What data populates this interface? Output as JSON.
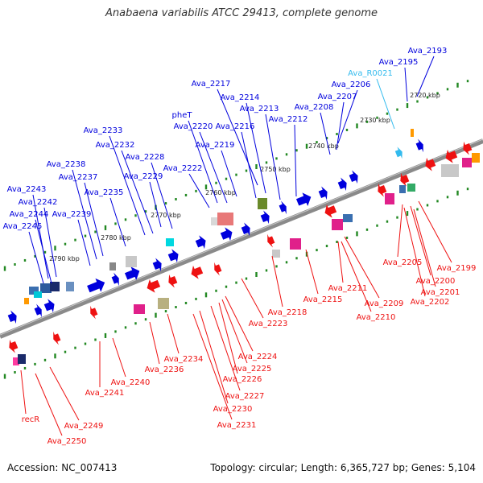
{
  "header": {
    "title": "Anabaena variabilis ATCC 29413, complete genome"
  },
  "footer": {
    "accession": "Accession: NC_007413",
    "summary": "Topology: circular; Length: 6,365,727 bp; Genes: 5,104"
  },
  "colors": {
    "forward_gene": "#0000dd",
    "reverse_gene": "#ee1111",
    "rna_label": "#33bbee",
    "backbone": "#8a8a8a",
    "tick_dot": "#228822"
  },
  "scale_ticks": [
    "2720 kbp",
    "2730 kbp",
    "2740 kbp",
    "2750 kbp",
    "2760 kbp",
    "2770 kbp",
    "2780 kbp",
    "2790 kbp"
  ],
  "labels_top": [
    {
      "text": "Ava_2193",
      "kind": "fwd"
    },
    {
      "text": "Ava_2195",
      "kind": "fwd"
    },
    {
      "text": "Ava_R0021",
      "kind": "rna"
    },
    {
      "text": "Ava_2206",
      "kind": "fwd"
    },
    {
      "text": "Ava_2207",
      "kind": "fwd"
    },
    {
      "text": "Ava_2208",
      "kind": "fwd"
    },
    {
      "text": "Ava_2217",
      "kind": "fwd"
    },
    {
      "text": "Ava_2214",
      "kind": "fwd"
    },
    {
      "text": "Ava_2213",
      "kind": "fwd"
    },
    {
      "text": "Ava_2212",
      "kind": "fwd"
    },
    {
      "text": "pheT",
      "kind": "fwd"
    },
    {
      "text": "Ava_2220",
      "kind": "fwd"
    },
    {
      "text": "Ava_2216",
      "kind": "fwd"
    },
    {
      "text": "Ava_2219",
      "kind": "fwd"
    },
    {
      "text": "Ava_2233",
      "kind": "fwd"
    },
    {
      "text": "Ava_2232",
      "kind": "fwd"
    },
    {
      "text": "Ava_2228",
      "kind": "fwd"
    },
    {
      "text": "Ava_2222",
      "kind": "fwd"
    },
    {
      "text": "Ava_2229",
      "kind": "fwd"
    },
    {
      "text": "Ava_2238",
      "kind": "fwd"
    },
    {
      "text": "Ava_2237",
      "kind": "fwd"
    },
    {
      "text": "Ava_2235",
      "kind": "fwd"
    },
    {
      "text": "Ava_2243",
      "kind": "fwd"
    },
    {
      "text": "Ava_2242",
      "kind": "fwd"
    },
    {
      "text": "Ava_2244",
      "kind": "fwd"
    },
    {
      "text": "Ava_2239",
      "kind": "fwd"
    },
    {
      "text": "Ava_2245",
      "kind": "fwd"
    }
  ],
  "labels_bottom": [
    "Ava_2199",
    "Ava_2205",
    "Ava_2200",
    "Ava_2201",
    "Ava_2202",
    "Ava_2211",
    "Ava_2209",
    "Ava_2210",
    "Ava_2215",
    "Ava_2218",
    "Ava_2223",
    "Ava_2224",
    "Ava_2225",
    "Ava_2226",
    "Ava_2227",
    "Ava_2230",
    "Ava_2231",
    "Ava_2234",
    "Ava_2236",
    "Ava_2240",
    "Ava_2241",
    "recR",
    "Ava_2249",
    "Ava_2250"
  ]
}
